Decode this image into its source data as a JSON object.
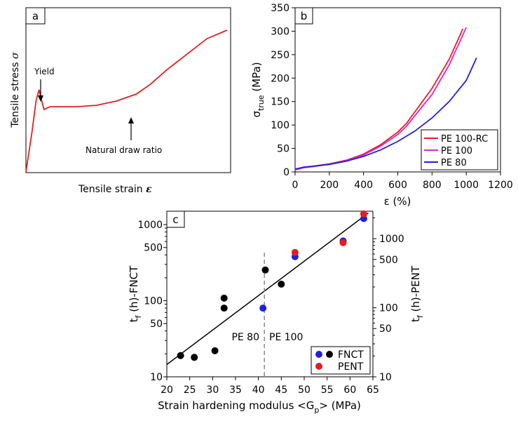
{
  "chart_data": [
    {
      "panel": "a",
      "type": "line",
      "title": "",
      "xlabel": "Tensile strain ε",
      "ylabel": "Tensile stress σ",
      "colors": {
        "curve": "#e02020"
      },
      "annotations": [
        "Yield",
        "Natural draw ratio"
      ],
      "series": [
        {
          "values": [
            [
              0.0,
              0.0
            ],
            [
              0.03,
              0.28
            ],
            [
              0.05,
              0.5
            ],
            [
              0.065,
              0.58
            ],
            [
              0.075,
              0.52
            ],
            [
              0.09,
              0.44
            ],
            [
              0.12,
              0.46
            ],
            [
              0.25,
              0.46
            ],
            [
              0.35,
              0.47
            ],
            [
              0.45,
              0.5
            ],
            [
              0.55,
              0.55
            ],
            [
              0.62,
              0.62
            ],
            [
              0.7,
              0.72
            ],
            [
              0.8,
              0.83
            ],
            [
              0.9,
              0.94
            ],
            [
              1.0,
              1.0
            ]
          ]
        }
      ]
    },
    {
      "panel": "b",
      "type": "line",
      "xlabel": "ε (%)",
      "ylabel": "σtrue (MPa)",
      "xlim": [
        0,
        1200
      ],
      "ylim": [
        0,
        350
      ],
      "xticks": [
        0,
        200,
        400,
        600,
        800,
        1000,
        1200
      ],
      "yticks": [
        0,
        50,
        100,
        150,
        200,
        250,
        300,
        350
      ],
      "legend_position": "bottom-right",
      "series": [
        {
          "name": "PE 100-RC",
          "color": "#e02020",
          "values": [
            [
              0,
              5
            ],
            [
              50,
              10
            ],
            [
              100,
              12
            ],
            [
              200,
              17
            ],
            [
              300,
              25
            ],
            [
              400,
              38
            ],
            [
              500,
              58
            ],
            [
              600,
              85
            ],
            [
              650,
              103
            ],
            [
              700,
              128
            ],
            [
              800,
              178
            ],
            [
              900,
              240
            ],
            [
              980,
              305
            ]
          ]
        },
        {
          "name": "PE 100",
          "color": "#e020e0",
          "values": [
            [
              0,
              4
            ],
            [
              50,
              9
            ],
            [
              100,
              11
            ],
            [
              200,
              16
            ],
            [
              300,
              24
            ],
            [
              400,
              36
            ],
            [
              500,
              55
            ],
            [
              600,
              80
            ],
            [
              650,
              97
            ],
            [
              700,
              120
            ],
            [
              800,
              165
            ],
            [
              900,
              228
            ],
            [
              1000,
              308
            ]
          ]
        },
        {
          "name": "PE 80",
          "color": "#1f1fe0",
          "values": [
            [
              0,
              6
            ],
            [
              50,
              10
            ],
            [
              100,
              12
            ],
            [
              200,
              16
            ],
            [
              300,
              23
            ],
            [
              400,
              33
            ],
            [
              500,
              47
            ],
            [
              600,
              65
            ],
            [
              700,
              87
            ],
            [
              800,
              115
            ],
            [
              900,
              150
            ],
            [
              1000,
              195
            ],
            [
              1060,
              243
            ]
          ]
        }
      ]
    },
    {
      "panel": "c",
      "type": "scatter",
      "xlabel": "Strain hardening modulus <Gp> (MPa)",
      "ylabel_left": "tf (h)-FNCT",
      "ylabel_right": "tf (h)-PENT",
      "xlim": [
        20,
        65
      ],
      "ylim": [
        10,
        1500
      ],
      "log_y": true,
      "xticks": [
        20,
        25,
        30,
        35,
        40,
        45,
        50,
        55,
        60,
        65
      ],
      "yticks_left": [
        10,
        50,
        100,
        500,
        1000
      ],
      "ylim_right": [
        10,
        2500
      ],
      "yticks_right": [
        10,
        50,
        100,
        500,
        1000
      ],
      "divider_x": 41.3,
      "region_labels": [
        "PE 80",
        "PE 100"
      ],
      "legend_position": "bottom-right",
      "legend": [
        "FNCT",
        "PENT"
      ],
      "colors": {
        "FNCT": "#1f1fe0",
        "PENT": "#e01f1f",
        "black": "#000000",
        "fit": "#000000"
      },
      "fit_line": [
        [
          20,
          14.5
        ],
        [
          64,
          1420
        ]
      ],
      "series": [
        {
          "name": "black points",
          "color": "#000000",
          "points": [
            [
              23,
              19
            ],
            [
              26,
              18
            ],
            [
              30.5,
              22
            ],
            [
              32.5,
              80
            ],
            [
              32.5,
              108
            ],
            [
              41.5,
              253
            ],
            [
              45,
              165
            ]
          ]
        },
        {
          "name": "FNCT",
          "color": "#1f1fe0",
          "points": [
            [
              41,
              80
            ],
            [
              48,
              380
            ],
            [
              58.5,
              610
            ],
            [
              63,
              1200
            ]
          ]
        },
        {
          "name": "PENT",
          "color": "#e01f1f",
          "points": [
            [
              48,
              430
            ],
            [
              58.5,
              580
            ],
            [
              63,
              1380
            ]
          ]
        }
      ]
    }
  ],
  "labels": {
    "a": "a",
    "b": "b",
    "c": "c",
    "yield": "Yield",
    "ndr": "Natural draw ratio",
    "a_xlabel": "Tensile strain",
    "a_xsym": "ε",
    "a_ylabel": "Tensile stress",
    "a_ysym": "σ",
    "b_ylabel_main": "σ",
    "b_ylabel_sub": "true",
    "b_ylabel_unit": " (MPa)",
    "b_xlabel": "ε (%)",
    "c_y_left_main": "t",
    "c_y_left_sub": "f",
    "c_y_left_rest": " (h)-FNCT",
    "c_y_right_main": "t",
    "c_y_right_sub": "f",
    "c_y_right_rest": " (h)-PENT",
    "c_xlabel_pre": "Strain hardening modulus <G",
    "c_xlabel_sub": "p",
    "c_xlabel_post": "> (MPa)",
    "pe80": "PE 80",
    "pe100": "PE 100",
    "fnct": "FNCT",
    "pent": "PENT"
  }
}
